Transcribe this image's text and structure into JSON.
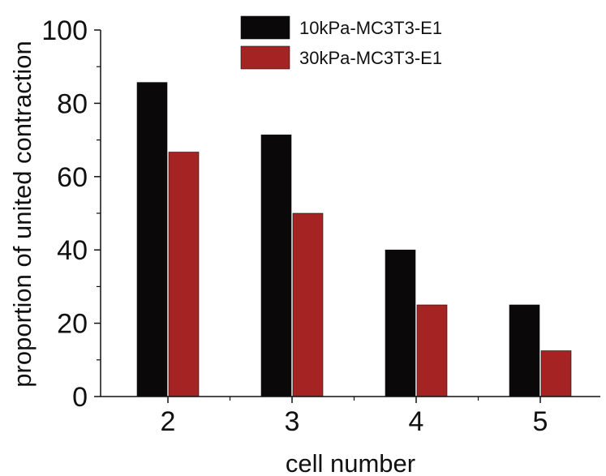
{
  "chart_data": {
    "type": "bar",
    "title": "",
    "xlabel": "cell number",
    "ylabel": "proportion of united contraction",
    "categories": [
      "2",
      "3",
      "4",
      "5"
    ],
    "series": [
      {
        "name": "10kPa-MC3T3-E1",
        "color": "#0b0809",
        "values": [
          85.7,
          71.4,
          40.0,
          25.0
        ]
      },
      {
        "name": "30kPa-MC3T3-E1",
        "color": "#a62324",
        "values": [
          66.7,
          50.0,
          25.0,
          12.5
        ]
      }
    ],
    "ylim": [
      0,
      100
    ],
    "yticks": [
      "0",
      "20",
      "40",
      "60",
      "80",
      "100"
    ],
    "grid": false,
    "legend_position": "top-right"
  }
}
